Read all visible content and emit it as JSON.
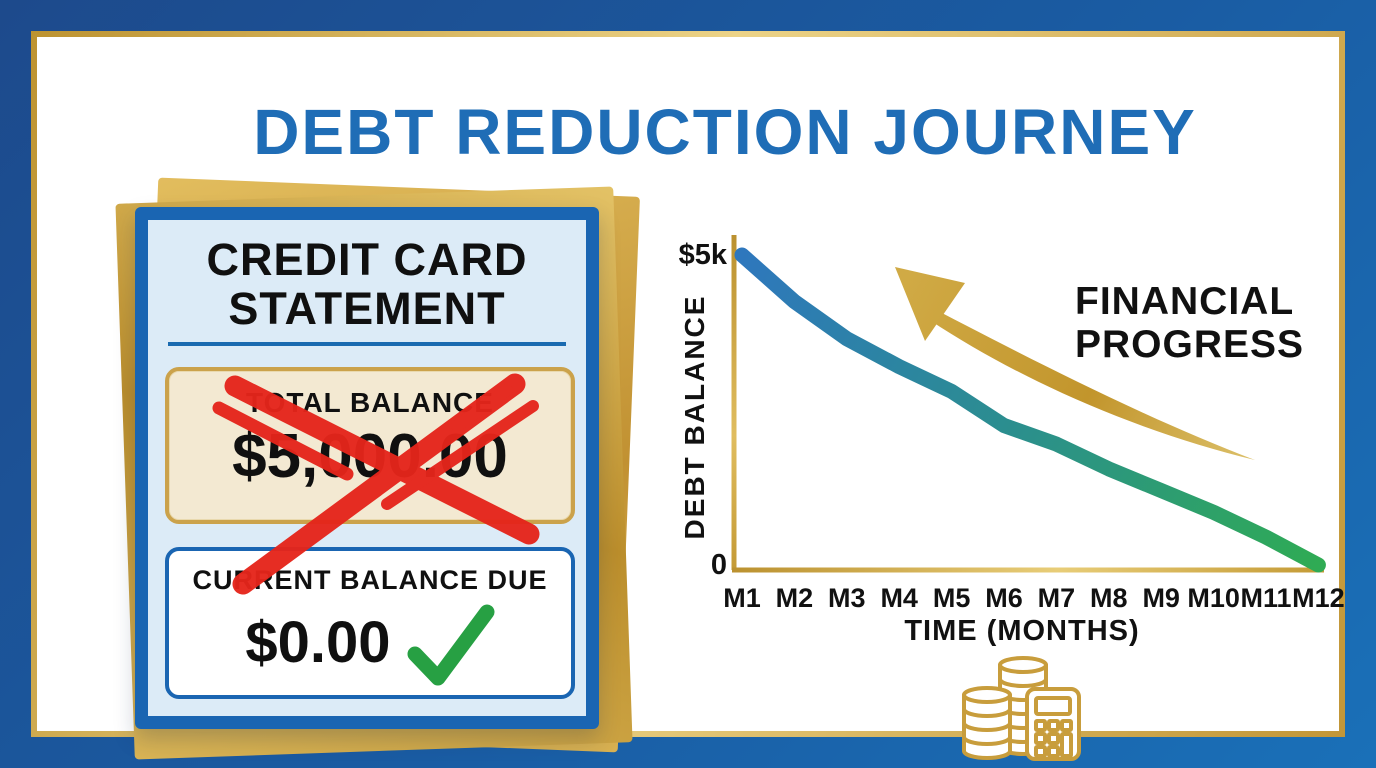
{
  "title": "DEBT REDUCTION JOURNEY",
  "statement": {
    "heading_line1": "CREDIT CARD",
    "heading_line2": "STATEMENT",
    "total_balance_label": "TOTAL BALANCE",
    "total_balance_amount": "$5,000.00",
    "total_balance_crossed_out": true,
    "current_balance_label": "CURRENT BALANCE DUE",
    "current_balance_amount": "$0.00",
    "current_balance_checked": true
  },
  "chart_data": {
    "type": "line",
    "x_labels": [
      "M1",
      "M2",
      "M3",
      "M4",
      "M5",
      "M6",
      "M7",
      "M8",
      "M9",
      "M10",
      "M11",
      "M12"
    ],
    "values": [
      5000,
      4250,
      3650,
      3200,
      2800,
      2250,
      1950,
      1550,
      1200,
      850,
      450,
      0
    ],
    "ylim": [
      0,
      5000
    ],
    "y_tick_labels": [
      "$5k",
      "0"
    ],
    "ylabel": "DEBT BALANCE",
    "xlabel": "TIME (MONTHS)",
    "annotation_line1": "FINANCIAL",
    "annotation_line2": "PROGRESS",
    "grid": false,
    "legend": false,
    "line_gradient": [
      "#2e77bd",
      "#2b8f8d",
      "#2fab54"
    ],
    "axis_color": "#c9a23c",
    "annotation_color": "#27a348",
    "arrow_color": "#c79a2f"
  },
  "colors": {
    "border_navy_start": "#1d4a8c",
    "border_navy_end": "#1a70b8",
    "frame_gold": "#c9992e",
    "title_blue": "#1f6db6",
    "card_border_blue": "#1a65b2",
    "card_bg_light_blue": "#dcebf7",
    "total_box_bg": "#f3e9d2",
    "total_box_border_gold": "#cba24b",
    "cross_red": "#e5251b",
    "check_green": "#27a043",
    "text_black": "#111111"
  },
  "icons": {
    "bottom_icon": "coins-and-calculator",
    "cross_icon": "red-cross",
    "check_icon": "green-check",
    "arrow_icon": "gold-upward-arrow"
  }
}
